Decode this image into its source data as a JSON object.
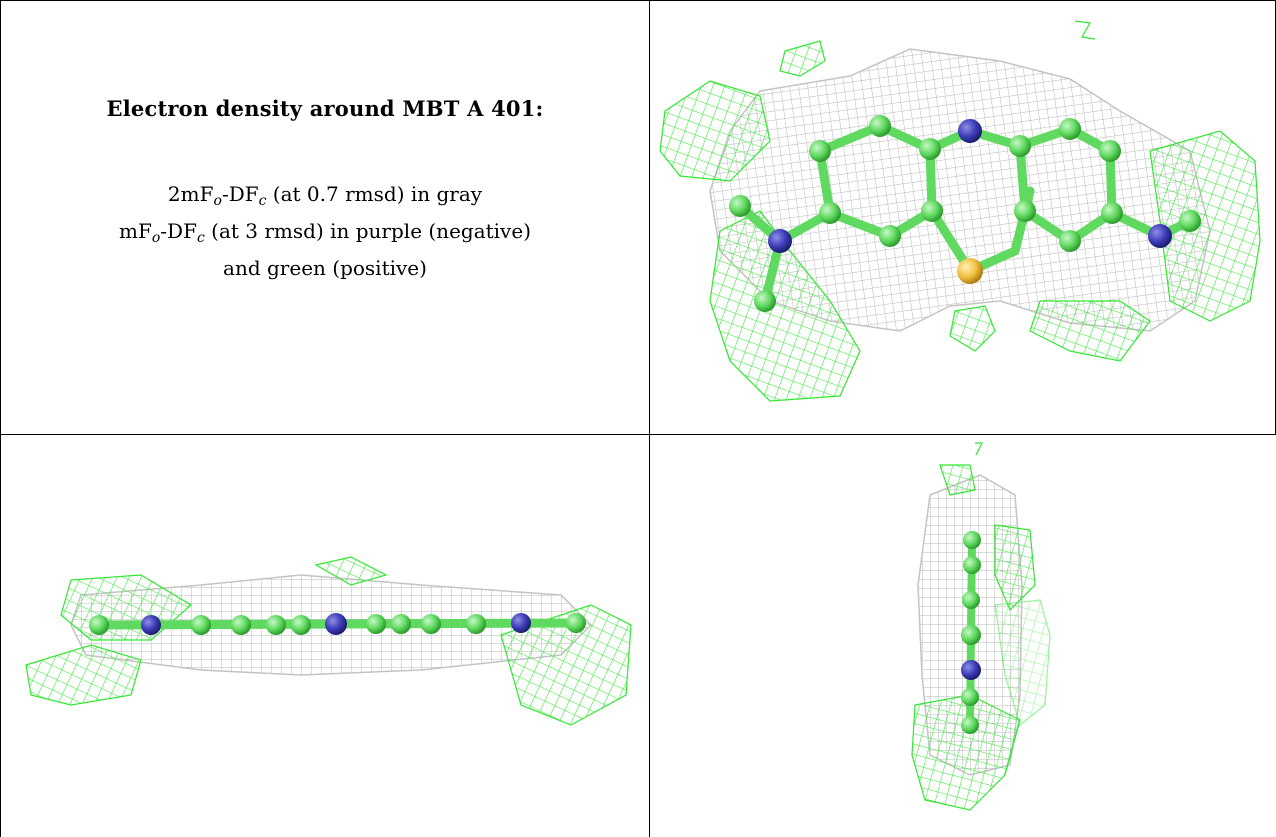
{
  "caption": {
    "title": "Electron density around MBT A 401:",
    "line1_prefix": "2mF",
    "line1_sub1": "o",
    "line1_mid": "-DF",
    "line1_sub2": "c",
    "line1_suffix": " (at 0.7 rmsd) in gray",
    "line2_prefix": "mF",
    "line2_sub1": "o",
    "line2_mid": "-DF",
    "line2_sub2": "c",
    "line2_suffix": " (at 3 rmsd) in purple (negative)",
    "line3": "and green (positive)"
  },
  "colors": {
    "gray_mesh": "#b8b8b8",
    "green_mesh": "#33e633",
    "carbon": "#6ee06e",
    "nitrogen": "#3c3cb8",
    "sulfur": "#f2c040"
  },
  "panels": [
    {
      "name": "top-view",
      "icon": "molecule-top-view"
    },
    {
      "name": "side-view",
      "icon": "molecule-side-view"
    },
    {
      "name": "end-view",
      "icon": "molecule-end-view"
    }
  ]
}
